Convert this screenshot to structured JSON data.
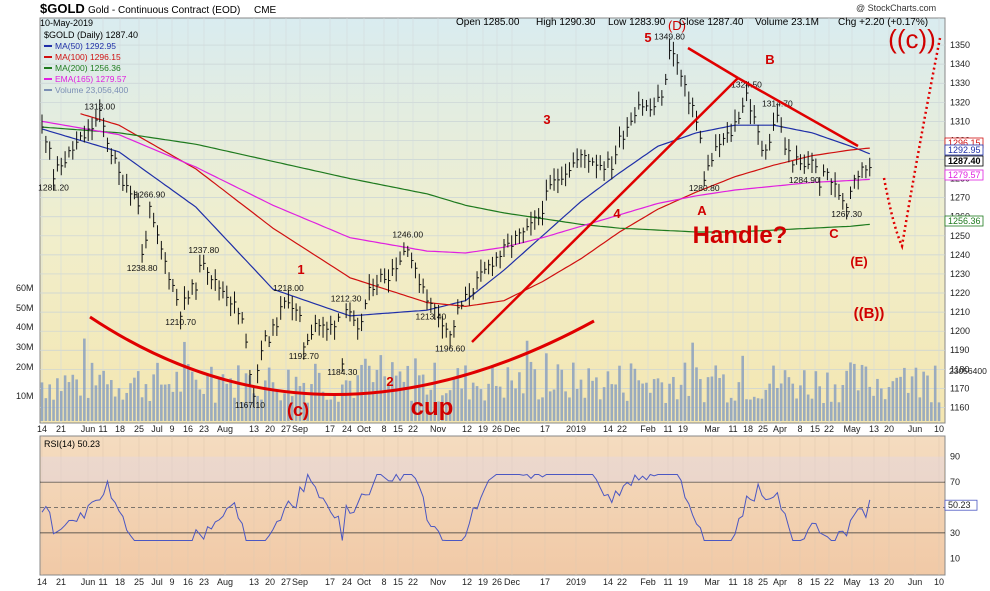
{
  "header": {
    "symbol": "$GOLD",
    "name": "Gold - Continuous Contract (EOD)",
    "exchange": "CME",
    "date": "10-May-2019",
    "open": "Open 1285.00",
    "high": "High 1290.30",
    "low": "Low 1283.90",
    "close": "Close 1287.40",
    "volume": "Volume 23.1M",
    "change": "Chg +2.20 (+0.17%)",
    "watermark": "@ StockCharts.com",
    "daily_label": "$GOLD (Daily) 1287.40"
  },
  "legend": [
    {
      "label": "MA(50) 1292.95",
      "color": "#1f2fa8"
    },
    {
      "label": "MA(100) 1296.15",
      "color": "#d01010"
    },
    {
      "label": "MA(200) 1256.36",
      "color": "#1e7a1e"
    },
    {
      "label": "EMA(165) 1279.57",
      "color": "#e020e0"
    },
    {
      "label": "Volume 23,056,400",
      "color": "#7b8fb4"
    }
  ],
  "price_annotations": [
    {
      "text": "1313.00",
      "i": 15,
      "v": 1313
    },
    {
      "text": "1281.20",
      "i": 3,
      "v": 1281.2
    },
    {
      "text": "1266.90",
      "i": 28,
      "v": 1266.9
    },
    {
      "text": "1238.80",
      "i": 26,
      "v": 1238.8
    },
    {
      "text": "1237.80",
      "i": 42,
      "v": 1237.8
    },
    {
      "text": "1210.70",
      "i": 36,
      "v": 1210.7
    },
    {
      "text": "1218.00",
      "i": 64,
      "v": 1218
    },
    {
      "text": "1212.30",
      "i": 79,
      "v": 1212.3
    },
    {
      "text": "1192.70",
      "i": 68,
      "v": 1192.7
    },
    {
      "text": "1184.30",
      "i": 78,
      "v": 1184.3
    },
    {
      "text": "1167.10",
      "i": 54,
      "v": 1167.1
    },
    {
      "text": "1246.00",
      "i": 95,
      "v": 1246
    },
    {
      "text": "1213.40",
      "i": 101,
      "v": 1213.4
    },
    {
      "text": "1196.60",
      "i": 106,
      "v": 1196.6
    },
    {
      "text": "1349.80",
      "i": 163,
      "v": 1349.8
    },
    {
      "text": "1324.50",
      "i": 183,
      "v": 1324.5
    },
    {
      "text": "1314.70",
      "i": 191,
      "v": 1314.7
    },
    {
      "text": "1280.80",
      "i": 172,
      "v": 1280.8
    },
    {
      "text": "1284.90",
      "i": 198,
      "v": 1284.9
    },
    {
      "text": "1267.30",
      "i": 209,
      "v": 1267.3
    }
  ],
  "wave_labels": [
    {
      "text": "5",
      "color": "#d00000"
    },
    {
      "text": "(D)",
      "color": "#d00000"
    },
    {
      "text": "3",
      "color": "#d00000"
    },
    {
      "text": "4",
      "color": "#d00000"
    },
    {
      "text": "1",
      "color": "#d00000"
    },
    {
      "text": "2",
      "color": "#d00000"
    },
    {
      "text": "(c)",
      "color": "#d00000"
    },
    {
      "text": "B",
      "color": "#d00000"
    },
    {
      "text": "A",
      "color": "#d00000"
    },
    {
      "text": "C",
      "color": "#d00000"
    },
    {
      "text": "(E)",
      "color": "#d00000"
    },
    {
      "text": "((B))",
      "color": "#d00000"
    },
    {
      "text": "((c))",
      "color": "#d00000"
    },
    {
      "text": "cup",
      "color": "#d00000"
    },
    {
      "text": "Handle?",
      "color": "#d00000"
    }
  ],
  "right_tags": [
    {
      "text": "1296.15",
      "color": "#d01010"
    },
    {
      "text": "1292.95",
      "color": "#1f2fa8"
    },
    {
      "text": "1287.40",
      "color": "#000000"
    },
    {
      "text": "1279.57",
      "color": "#e020e0"
    },
    {
      "text": "1256.36",
      "color": "#1e7a1e"
    }
  ],
  "volume_tag": "23056400",
  "rsi": {
    "label": "RSI(14) 50.23",
    "value_tag": "50.23",
    "ticks": [
      "90",
      "70",
      "50",
      "30",
      "10"
    ]
  },
  "price_axis": {
    "min": 1155,
    "max": 1360,
    "ticks": [
      1160,
      1170,
      1180,
      1190,
      1200,
      1210,
      1220,
      1230,
      1240,
      1250,
      1260,
      1270,
      1280,
      1290,
      1300,
      1310,
      1320,
      1330,
      1340,
      1350
    ]
  },
  "volume_axis": {
    "ticks": [
      "60M",
      "50M",
      "40M",
      "30M",
      "20M",
      "10M"
    ]
  },
  "date_axis": [
    "14",
    "21",
    "Jun",
    "11",
    "18",
    "25",
    "Jul",
    "9",
    "16",
    "23",
    "Aug",
    "13",
    "20",
    "27",
    "Sep",
    "17",
    "24",
    "Oct",
    "8",
    "15",
    "22",
    "Nov",
    "12",
    "19",
    "26",
    "Dec",
    "17",
    "2019",
    "14",
    "22",
    "Feb",
    "11",
    "19",
    "Mar",
    "11",
    "18",
    "25",
    "Apr",
    "8",
    "15",
    "22",
    "May",
    "13",
    "20",
    "Jun",
    "10"
  ],
  "chart_data": {
    "type": "line",
    "title": "$GOLD Gold - Continuous Contract (EOD) CME",
    "xlabel": "",
    "ylabel": "",
    "ylim": [
      1155,
      1360
    ],
    "series": [
      {
        "name": "$GOLD (Daily)",
        "anchors": [
          [
            0,
            1306
          ],
          [
            2,
            1298
          ],
          [
            3,
            1281
          ],
          [
            6,
            1290
          ],
          [
            9,
            1298
          ],
          [
            12,
            1304
          ],
          [
            15,
            1313
          ],
          [
            17,
            1300
          ],
          [
            20,
            1282
          ],
          [
            23,
            1275
          ],
          [
            25,
            1267
          ],
          [
            26,
            1239
          ],
          [
            28,
            1262
          ],
          [
            30,
            1248
          ],
          [
            33,
            1230
          ],
          [
            36,
            1211
          ],
          [
            40,
            1225
          ],
          [
            42,
            1238
          ],
          [
            45,
            1225
          ],
          [
            48,
            1220
          ],
          [
            50,
            1213
          ],
          [
            52,
            1205
          ],
          [
            54,
            1180
          ],
          [
            55,
            1168
          ],
          [
            57,
            1192
          ],
          [
            60,
            1200
          ],
          [
            62,
            1210
          ],
          [
            64,
            1218
          ],
          [
            67,
            1205
          ],
          [
            68,
            1193
          ],
          [
            71,
            1205
          ],
          [
            74,
            1200
          ],
          [
            77,
            1208
          ],
          [
            78,
            1186
          ],
          [
            79,
            1212
          ],
          [
            82,
            1198
          ],
          [
            84,
            1214
          ],
          [
            86,
            1225
          ],
          [
            88,
            1228
          ],
          [
            90,
            1230
          ],
          [
            93,
            1238
          ],
          [
            95,
            1246
          ],
          [
            97,
            1230
          ],
          [
            99,
            1224
          ],
          [
            101,
            1213
          ],
          [
            103,
            1210
          ],
          [
            105,
            1202
          ],
          [
            106,
            1197
          ],
          [
            108,
            1210
          ],
          [
            111,
            1220
          ],
          [
            114,
            1228
          ],
          [
            117,
            1237
          ],
          [
            120,
            1242
          ],
          [
            123,
            1248
          ],
          [
            126,
            1252
          ],
          [
            129,
            1260
          ],
          [
            132,
            1275
          ],
          [
            135,
            1283
          ],
          [
            138,
            1288
          ],
          [
            141,
            1292
          ],
          [
            143,
            1290
          ],
          [
            145,
            1288
          ],
          [
            148,
            1287
          ],
          [
            150,
            1300
          ],
          [
            153,
            1312
          ],
          [
            155,
            1320
          ],
          [
            158,
            1316
          ],
          [
            160,
            1320
          ],
          [
            162,
            1330
          ],
          [
            163,
            1349.8
          ],
          [
            165,
            1340
          ],
          [
            167,
            1326
          ],
          [
            169,
            1318
          ],
          [
            171,
            1300
          ],
          [
            172,
            1281
          ],
          [
            174,
            1290
          ],
          [
            176,
            1298
          ],
          [
            179,
            1304
          ],
          [
            181,
            1314
          ],
          [
            183,
            1324.5
          ],
          [
            185,
            1310
          ],
          [
            187,
            1296
          ],
          [
            189,
            1300
          ],
          [
            191,
            1314.7
          ],
          [
            193,
            1296
          ],
          [
            195,
            1290
          ],
          [
            198,
            1285
          ],
          [
            200,
            1291
          ],
          [
            202,
            1278
          ],
          [
            204,
            1283
          ],
          [
            206,
            1275
          ],
          [
            209,
            1267.3
          ],
          [
            211,
            1282
          ],
          [
            213,
            1284
          ],
          [
            215,
            1287.4
          ]
        ],
        "summary": {
          "last": 1287.4,
          "high": 1349.8,
          "low": 1167.1
        }
      },
      {
        "name": "MA(50)",
        "anchors": [
          [
            0,
            1306
          ],
          [
            20,
            1294
          ],
          [
            40,
            1265
          ],
          [
            60,
            1222
          ],
          [
            80,
            1208
          ],
          [
            100,
            1211
          ],
          [
            110,
            1216
          ],
          [
            120,
            1232
          ],
          [
            130,
            1250
          ],
          [
            140,
            1268
          ],
          [
            150,
            1283
          ],
          [
            160,
            1297
          ],
          [
            170,
            1304
          ],
          [
            180,
            1308
          ],
          [
            190,
            1308
          ],
          [
            200,
            1304
          ],
          [
            210,
            1297
          ],
          [
            215,
            1293
          ]
        ]
      },
      {
        "name": "MA(100)",
        "anchors": [
          [
            10,
            1314
          ],
          [
            20,
            1308
          ],
          [
            40,
            1285
          ],
          [
            60,
            1254
          ],
          [
            80,
            1228
          ],
          [
            100,
            1215
          ],
          [
            110,
            1213
          ],
          [
            120,
            1216
          ],
          [
            130,
            1226
          ],
          [
            140,
            1238
          ],
          [
            150,
            1252
          ],
          [
            160,
            1264
          ],
          [
            170,
            1273
          ],
          [
            180,
            1281
          ],
          [
            190,
            1287
          ],
          [
            200,
            1292
          ],
          [
            210,
            1295
          ],
          [
            215,
            1296
          ]
        ]
      },
      {
        "name": "MA(200)",
        "anchors": [
          [
            0,
            1307
          ],
          [
            20,
            1304
          ],
          [
            40,
            1298
          ],
          [
            60,
            1289
          ],
          [
            80,
            1280
          ],
          [
            100,
            1272
          ],
          [
            110,
            1266
          ],
          [
            120,
            1262
          ],
          [
            130,
            1259
          ],
          [
            140,
            1256
          ],
          [
            150,
            1254
          ],
          [
            160,
            1253
          ],
          [
            170,
            1252
          ],
          [
            180,
            1252
          ],
          [
            190,
            1253
          ],
          [
            200,
            1254
          ],
          [
            210,
            1255
          ],
          [
            215,
            1256
          ]
        ]
      },
      {
        "name": "EMA(165)",
        "anchors": [
          [
            0,
            1310
          ],
          [
            20,
            1303
          ],
          [
            40,
            1286
          ],
          [
            60,
            1266
          ],
          [
            80,
            1249
          ],
          [
            100,
            1242
          ],
          [
            110,
            1241
          ],
          [
            120,
            1244
          ],
          [
            130,
            1249
          ],
          [
            140,
            1255
          ],
          [
            150,
            1261
          ],
          [
            160,
            1267
          ],
          [
            170,
            1271
          ],
          [
            180,
            1274
          ],
          [
            190,
            1276
          ],
          [
            200,
            1278
          ],
          [
            210,
            1279
          ],
          [
            215,
            1279.57
          ]
        ]
      },
      {
        "name": "RSI(14)",
        "last": 50.23,
        "range": [
          10,
          90
        ]
      }
    ]
  }
}
